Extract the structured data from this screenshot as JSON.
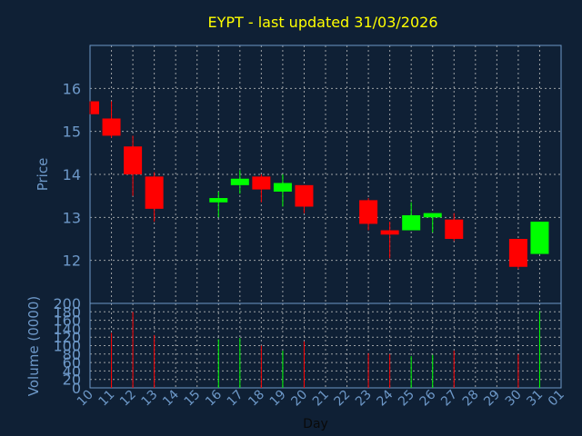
{
  "title": "EYPT - last updated 31/03/2026",
  "colors": {
    "up": "#00ff00",
    "down": "#ff0000",
    "background": "#0f2035",
    "grid": "#c0c0c0",
    "axis_text": "#6d98c8",
    "title": "#ffff00"
  },
  "chart_data": [
    {
      "type": "candlestick",
      "title": "EYPT - last updated 31/03/2026",
      "ylabel": "Price",
      "ylim": [
        11,
        17
      ],
      "yticks": [
        12,
        13,
        14,
        15,
        16
      ],
      "grid": true,
      "candles": [
        {
          "day": "10",
          "open": 15.7,
          "high": 15.7,
          "low": 15.4,
          "close": 15.4
        },
        {
          "day": "11",
          "open": 15.3,
          "high": 15.7,
          "low": 14.85,
          "close": 14.9
        },
        {
          "day": "12",
          "open": 14.65,
          "high": 14.9,
          "low": 13.5,
          "close": 14.0
        },
        {
          "day": "13",
          "open": 13.95,
          "high": 14.05,
          "low": 12.9,
          "close": 13.2
        },
        {
          "day": "16",
          "open": 13.35,
          "high": 13.6,
          "low": 13.0,
          "close": 13.45
        },
        {
          "day": "17",
          "open": 13.75,
          "high": 14.1,
          "low": 13.55,
          "close": 13.9
        },
        {
          "day": "18",
          "open": 13.95,
          "high": 14.0,
          "low": 13.35,
          "close": 13.65
        },
        {
          "day": "19",
          "open": 13.6,
          "high": 14.0,
          "low": 13.25,
          "close": 13.8
        },
        {
          "day": "20",
          "open": 13.75,
          "high": 13.75,
          "low": 13.1,
          "close": 13.25
        },
        {
          "day": "23",
          "open": 13.4,
          "high": 13.45,
          "low": 12.7,
          "close": 12.85
        },
        {
          "day": "24",
          "open": 12.7,
          "high": 12.9,
          "low": 12.05,
          "close": 12.6
        },
        {
          "day": "25",
          "open": 12.7,
          "high": 13.35,
          "low": 12.7,
          "close": 13.05
        },
        {
          "day": "26",
          "open": 13.0,
          "high": 13.1,
          "low": 12.65,
          "close": 13.1
        },
        {
          "day": "27",
          "open": 12.95,
          "high": 13.1,
          "low": 12.45,
          "close": 12.5
        },
        {
          "day": "30",
          "open": 12.5,
          "high": 12.5,
          "low": 11.8,
          "close": 11.85
        },
        {
          "day": "31",
          "open": 12.15,
          "high": 12.9,
          "low": 12.15,
          "close": 12.9
        }
      ]
    },
    {
      "type": "bar",
      "ylabel": "Volume (0000)",
      "xlabel": "Day",
      "ylim": [
        0,
        200
      ],
      "yticks": [
        0,
        20,
        40,
        60,
        80,
        100,
        120,
        140,
        160,
        180,
        200
      ],
      "grid": true,
      "categories": [
        "10",
        "11",
        "12",
        "13",
        "14",
        "15",
        "16",
        "17",
        "18",
        "19",
        "20",
        "21",
        "22",
        "23",
        "24",
        "25",
        "26",
        "27",
        "28",
        "29",
        "30",
        "31",
        "01"
      ],
      "volumes": [
        {
          "day": "11",
          "value": 130,
          "direction": "down"
        },
        {
          "day": "12",
          "value": 180,
          "direction": "down"
        },
        {
          "day": "13",
          "value": 125,
          "direction": "down"
        },
        {
          "day": "16",
          "value": 115,
          "direction": "up"
        },
        {
          "day": "17",
          "value": 118,
          "direction": "up"
        },
        {
          "day": "18",
          "value": 100,
          "direction": "down"
        },
        {
          "day": "19",
          "value": 88,
          "direction": "up"
        },
        {
          "day": "20",
          "value": 110,
          "direction": "down"
        },
        {
          "day": "23",
          "value": 82,
          "direction": "down"
        },
        {
          "day": "24",
          "value": 80,
          "direction": "down"
        },
        {
          "day": "25",
          "value": 75,
          "direction": "up"
        },
        {
          "day": "26",
          "value": 78,
          "direction": "up"
        },
        {
          "day": "27",
          "value": 88,
          "direction": "down"
        },
        {
          "day": "30",
          "value": 80,
          "direction": "down"
        },
        {
          "day": "31",
          "value": 182,
          "direction": "up"
        }
      ]
    }
  ]
}
